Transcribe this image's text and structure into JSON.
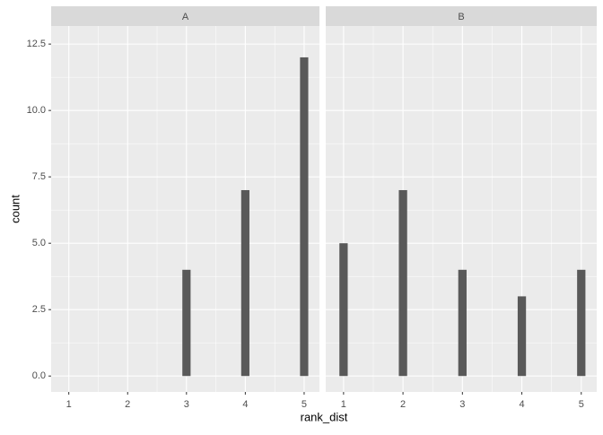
{
  "chart_data": {
    "type": "bar",
    "xlabel": "rank_dist",
    "ylabel": "count",
    "x": [
      1,
      2,
      3,
      4,
      5
    ],
    "xlim": [
      0.7,
      5.26
    ],
    "xticks": [
      1,
      2,
      3,
      4,
      5
    ],
    "ylim": [
      -0.6,
      13.18
    ],
    "yticks": [
      {
        "value": 0,
        "label": "0.0"
      },
      2.5,
      {
        "value": 5,
        "label": "5.0"
      },
      7.5,
      {
        "value": 10,
        "label": "10.0"
      },
      12.5
    ],
    "color": "#595959",
    "grid": true,
    "facets": [
      {
        "title": "A",
        "values": [
          0,
          0,
          4,
          7,
          12
        ]
      },
      {
        "title": "B",
        "values": [
          5,
          7,
          4,
          3,
          4
        ]
      }
    ]
  }
}
